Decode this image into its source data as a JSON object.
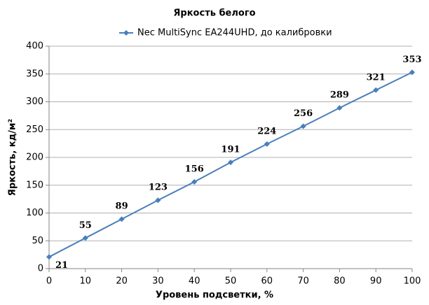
{
  "chart_data": {
    "type": "line",
    "title": "Яркость белого",
    "x": [
      0,
      10,
      20,
      30,
      40,
      50,
      60,
      70,
      80,
      90,
      100
    ],
    "series": [
      {
        "name": "Nec MultiSync EA244UHD, до калибровки",
        "color": "#4a7ebb",
        "values": [
          21,
          55,
          89,
          123,
          156,
          191,
          224,
          256,
          289,
          321,
          353
        ]
      }
    ],
    "xlabel": "Уровень подсветки, %",
    "ylabel": "Яркость, кд/м²",
    "xlim": [
      0,
      100
    ],
    "xticks": [
      0,
      10,
      20,
      30,
      40,
      50,
      60,
      70,
      80,
      90,
      100
    ],
    "ylim": [
      0,
      400
    ],
    "yticks": [
      0,
      50,
      100,
      150,
      200,
      250,
      300,
      350,
      400
    ],
    "grid": true,
    "legend": "top"
  }
}
